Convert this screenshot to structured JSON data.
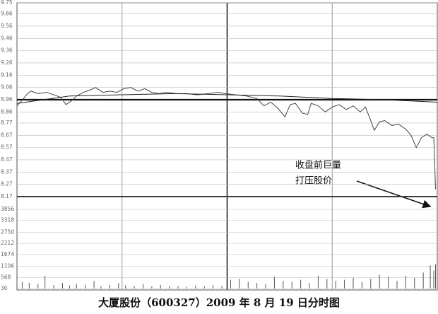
{
  "chart_data": {
    "type": "intraday",
    "title": "大厦股份（600327）2009 年 8 月 19 日分时图",
    "annotations": [
      "收盘前巨量",
      "打压股价"
    ],
    "xlim": [
      0,
      240
    ],
    "ylim": [
      8.17,
      9.75
    ],
    "yticks": [
      9.75,
      9.66,
      9.56,
      9.46,
      9.36,
      9.26,
      9.16,
      9.06,
      8.96,
      8.86,
      8.77,
      8.67,
      8.57,
      8.47,
      8.37,
      8.27,
      8.17
    ],
    "y2lim": [
      30,
      3856
    ],
    "y2ticks": [
      3856,
      3318,
      2750,
      2212,
      1674,
      1106,
      568,
      30
    ],
    "reference_line": 8.96,
    "grid": true,
    "series": [
      {
        "kind": "line",
        "color": "#444444",
        "x": [
          0,
          2,
          6,
          8,
          12,
          17,
          21,
          25,
          28,
          31,
          34,
          38,
          42,
          45,
          49,
          53,
          57,
          61,
          65,
          69,
          73,
          77,
          81,
          85,
          91,
          97,
          103,
          109,
          115,
          119,
          125,
          131,
          137,
          141,
          145,
          149,
          153,
          156,
          159,
          163,
          166,
          168,
          172,
          176,
          180,
          184,
          188,
          192,
          196,
          199,
          202,
          204,
          207,
          210,
          214,
          218,
          222,
          225,
          228,
          231,
          234,
          237,
          238,
          239
        ],
        "values": [
          8.91,
          8.94,
          9.01,
          9.03,
          9.01,
          9.02,
          9.0,
          8.98,
          8.92,
          8.95,
          8.99,
          9.02,
          9.04,
          9.06,
          9.02,
          9.03,
          9.02,
          9.05,
          9.06,
          9.03,
          9.05,
          9.02,
          9.01,
          9.02,
          9.01,
          9.01,
          9.0,
          9.01,
          9.02,
          9.01,
          9.0,
          8.99,
          8.97,
          8.91,
          8.94,
          8.89,
          8.82,
          8.92,
          8.93,
          8.85,
          8.84,
          8.93,
          8.91,
          8.86,
          8.9,
          8.92,
          8.88,
          8.91,
          8.86,
          8.9,
          8.79,
          8.71,
          8.78,
          8.79,
          8.75,
          8.76,
          8.72,
          8.67,
          8.57,
          8.65,
          8.68,
          8.65,
          8.65,
          8.23
        ]
      },
      {
        "kind": "line",
        "color": "#222222",
        "x": [
          0,
          30,
          60,
          90,
          120,
          150,
          180,
          210,
          240
        ],
        "values": [
          8.93,
          8.99,
          9.0,
          9.01,
          9.0,
          8.99,
          8.97,
          8.96,
          8.94
        ]
      },
      {
        "kind": "bar",
        "axis": "y2",
        "color": "#555555",
        "x": [
          0,
          3,
          7,
          12,
          16,
          21,
          26,
          30,
          34,
          39,
          44,
          48,
          53,
          58,
          62,
          67,
          72,
          77,
          82,
          87,
          92,
          97,
          102,
          107,
          112,
          117,
          122,
          127,
          132,
          137,
          142,
          147,
          152,
          157,
          162,
          167,
          172,
          177,
          182,
          187,
          192,
          197,
          202,
          207,
          212,
          217,
          222,
          227,
          232,
          236,
          238,
          239
        ],
        "values": [
          700,
          350,
          300,
          250,
          650,
          200,
          300,
          180,
          250,
          220,
          400,
          150,
          200,
          300,
          180,
          150,
          250,
          130,
          200,
          160,
          150,
          120,
          180,
          140,
          200,
          160,
          450,
          500,
          350,
          300,
          250,
          600,
          400,
          350,
          450,
          300,
          650,
          500,
          400,
          450,
          550,
          350,
          500,
          700,
          600,
          400,
          650,
          550,
          800,
          1150,
          900,
          1200
        ]
      }
    ]
  }
}
